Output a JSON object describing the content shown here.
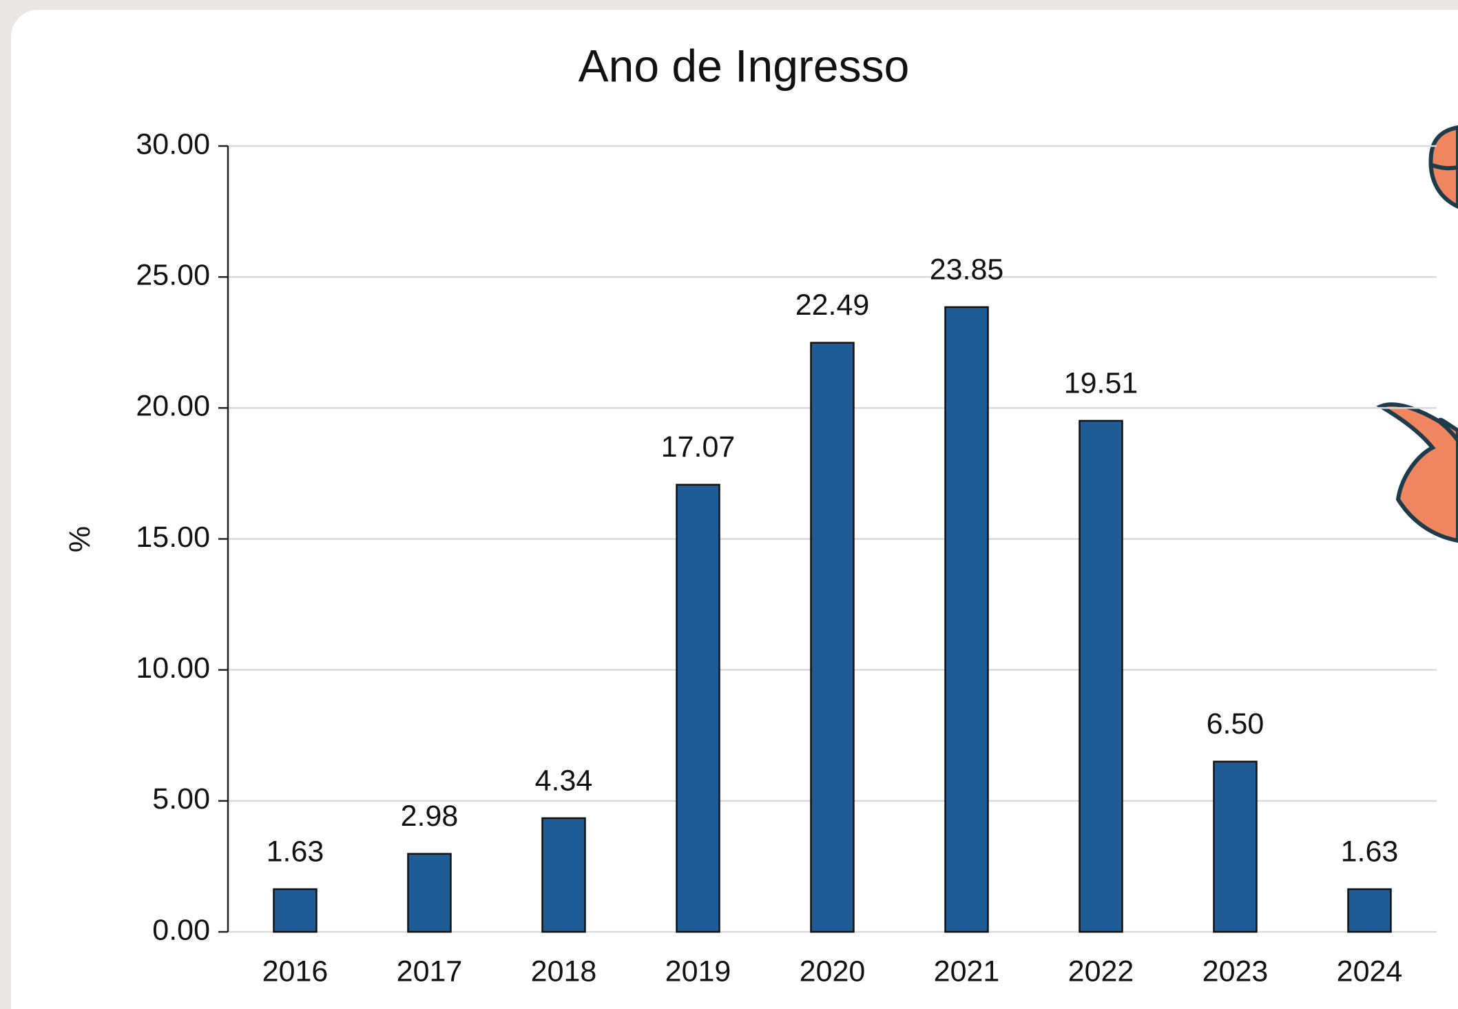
{
  "chart_data": {
    "type": "bar",
    "title": "Ano de Ingresso",
    "y_label": "%",
    "categories": [
      "2016",
      "2017",
      "2018",
      "2019",
      "2020",
      "2021",
      "2022",
      "2023",
      "2024"
    ],
    "values": [
      1.63,
      2.98,
      4.34,
      17.07,
      22.49,
      23.85,
      19.51,
      6.5,
      1.63
    ],
    "value_labels": [
      "1.63",
      "2.98",
      "4.34",
      "17.07",
      "22.49",
      "23.85",
      "19.51",
      "6.50",
      "1.63"
    ],
    "color": "#1f5c96",
    "ylim": [
      0,
      30
    ],
    "yticks": [
      {
        "value": 0,
        "label": "0.00"
      },
      {
        "value": 5,
        "label": "5.00"
      },
      {
        "value": 10,
        "label": "10.00"
      },
      {
        "value": 15,
        "label": "15.00"
      },
      {
        "value": 20,
        "label": "20.00"
      },
      {
        "value": 25,
        "label": "25.00"
      },
      {
        "value": 30,
        "label": "30.00"
      }
    ],
    "grid": true
  }
}
